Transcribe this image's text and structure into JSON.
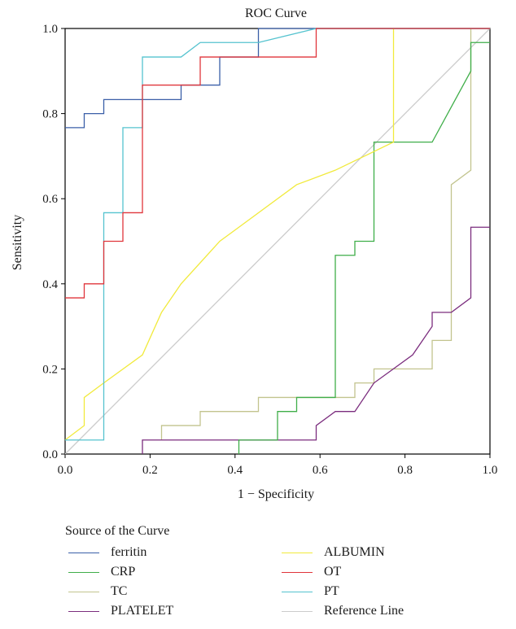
{
  "chart_data": {
    "type": "line",
    "title": "ROC Curve",
    "xlabel": "1 − Specificity",
    "ylabel": "Sensitivity",
    "xlim": [
      0.0,
      1.0
    ],
    "ylim": [
      0.0,
      1.0
    ],
    "xticks": [
      "0.0",
      "0.2",
      "0.4",
      "0.6",
      "0.8",
      "1.0"
    ],
    "yticks": [
      "0.0",
      "0.2",
      "0.4",
      "0.6",
      "0.8",
      "1.0"
    ],
    "grid": false,
    "legend_title": "Source of the Curve",
    "legend_position": "bottom",
    "series": [
      {
        "name": "ferritin",
        "color": "#3a5fa8",
        "points": [
          [
            0,
            0.767
          ],
          [
            0.045,
            0.767
          ],
          [
            0.045,
            0.8
          ],
          [
            0.091,
            0.8
          ],
          [
            0.091,
            0.833
          ],
          [
            0.273,
            0.833
          ],
          [
            0.273,
            0.867
          ],
          [
            0.318,
            0.867
          ],
          [
            0.364,
            0.867
          ],
          [
            0.364,
            0.933
          ],
          [
            0.455,
            0.933
          ],
          [
            0.455,
            1.0
          ],
          [
            1.0,
            1.0
          ]
        ]
      },
      {
        "name": "CRP",
        "color": "#3fae49",
        "points": [
          [
            0.409,
            0
          ],
          [
            0.409,
            0.033
          ],
          [
            0.5,
            0.033
          ],
          [
            0.5,
            0.1
          ],
          [
            0.545,
            0.1
          ],
          [
            0.545,
            0.133
          ],
          [
            0.636,
            0.133
          ],
          [
            0.636,
            0.467
          ],
          [
            0.682,
            0.467
          ],
          [
            0.682,
            0.5
          ],
          [
            0.727,
            0.5
          ],
          [
            0.727,
            0.733
          ],
          [
            0.864,
            0.733
          ],
          [
            0.955,
            0.9
          ],
          [
            0.955,
            0.967
          ],
          [
            1.0,
            0.967
          ]
        ]
      },
      {
        "name": "TC",
        "color": "#c2c48e",
        "points": [
          [
            0.227,
            0.033
          ],
          [
            0.227,
            0.067
          ],
          [
            0.318,
            0.067
          ],
          [
            0.318,
            0.1
          ],
          [
            0.455,
            0.1
          ],
          [
            0.455,
            0.133
          ],
          [
            0.682,
            0.133
          ],
          [
            0.682,
            0.167
          ],
          [
            0.727,
            0.167
          ],
          [
            0.727,
            0.2
          ],
          [
            0.864,
            0.2
          ],
          [
            0.864,
            0.267
          ],
          [
            0.909,
            0.267
          ],
          [
            0.909,
            0.633
          ],
          [
            0.955,
            0.667
          ],
          [
            0.955,
            1.0
          ]
        ]
      },
      {
        "name": "PLATELET",
        "color": "#7b2d7e",
        "points": [
          [
            0.182,
            0
          ],
          [
            0.182,
            0.033
          ],
          [
            0.591,
            0.033
          ],
          [
            0.591,
            0.067
          ],
          [
            0.636,
            0.1
          ],
          [
            0.682,
            0.1
          ],
          [
            0.727,
            0.167
          ],
          [
            0.818,
            0.233
          ],
          [
            0.864,
            0.3
          ],
          [
            0.864,
            0.333
          ],
          [
            0.909,
            0.333
          ],
          [
            0.955,
            0.367
          ],
          [
            0.955,
            0.533
          ],
          [
            1.0,
            0.533
          ]
        ]
      },
      {
        "name": "ALBUMIN",
        "color": "#f1ea3c",
        "points": [
          [
            0,
            0.033
          ],
          [
            0.045,
            0.067
          ],
          [
            0.045,
            0.133
          ],
          [
            0.091,
            0.167
          ],
          [
            0.182,
            0.233
          ],
          [
            0.227,
            0.333
          ],
          [
            0.273,
            0.4
          ],
          [
            0.364,
            0.5
          ],
          [
            0.409,
            0.533
          ],
          [
            0.545,
            0.633
          ],
          [
            0.636,
            0.667
          ],
          [
            0.773,
            0.733
          ],
          [
            0.773,
            1.0
          ]
        ]
      },
      {
        "name": "OT",
        "color": "#e0353b",
        "points": [
          [
            0,
            0.367
          ],
          [
            0.045,
            0.367
          ],
          [
            0.045,
            0.4
          ],
          [
            0.091,
            0.4
          ],
          [
            0.091,
            0.5
          ],
          [
            0.136,
            0.5
          ],
          [
            0.136,
            0.567
          ],
          [
            0.182,
            0.567
          ],
          [
            0.182,
            0.867
          ],
          [
            0.273,
            0.867
          ],
          [
            0.318,
            0.867
          ],
          [
            0.318,
            0.933
          ],
          [
            0.591,
            0.933
          ],
          [
            0.591,
            1.0
          ],
          [
            1.0,
            1.0
          ]
        ]
      },
      {
        "name": "PT",
        "color": "#55c3cf",
        "points": [
          [
            0,
            0.033
          ],
          [
            0.091,
            0.033
          ],
          [
            0.091,
            0.567
          ],
          [
            0.136,
            0.567
          ],
          [
            0.136,
            0.767
          ],
          [
            0.182,
            0.767
          ],
          [
            0.182,
            0.933
          ],
          [
            0.273,
            0.933
          ],
          [
            0.318,
            0.967
          ],
          [
            0.455,
            0.967
          ],
          [
            0.591,
            1.0
          ],
          [
            1.0,
            1.0
          ]
        ]
      },
      {
        "name": "Reference Line",
        "color": "#cccccc",
        "points": [
          [
            0,
            0
          ],
          [
            1,
            1
          ]
        ]
      }
    ]
  }
}
